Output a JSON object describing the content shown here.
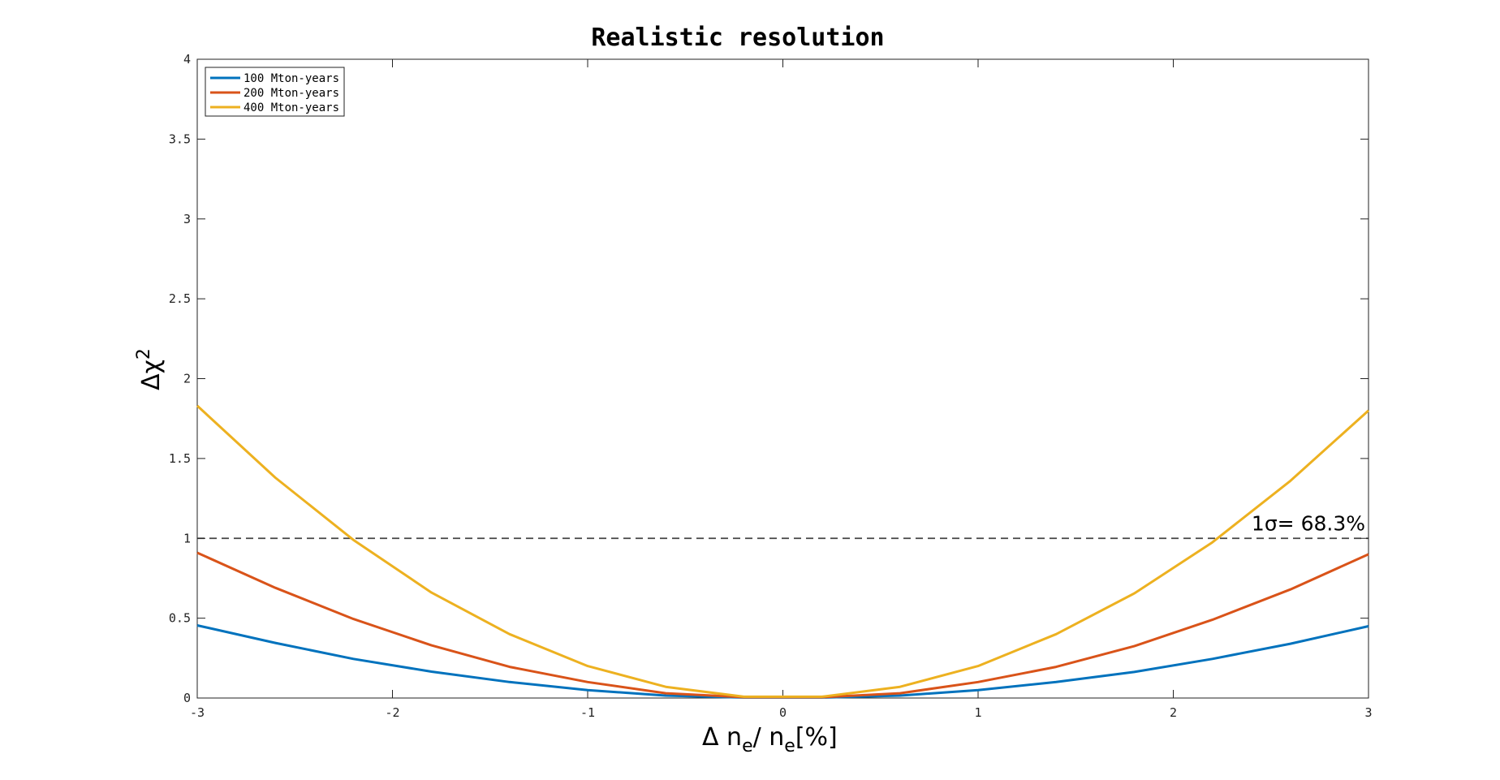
{
  "chart_data": {
    "type": "line",
    "title": "Realistic resolution",
    "xlabel_main": "Δ n",
    "xlabel_sub": "e",
    "xlabel_mid": "/ n",
    "xlabel_sub2": "e",
    "xlabel_end": "[%]",
    "ylabel_main": "Δχ",
    "ylabel_sup": "2",
    "xlim": [
      -3,
      3
    ],
    "ylim": [
      0,
      4
    ],
    "xticks": [
      "-3",
      "-2",
      "-1",
      "0",
      "1",
      "2",
      "3"
    ],
    "yticks": [
      "0",
      "0.5",
      "1",
      "1.5",
      "2",
      "2.5",
      "3",
      "3.5",
      "4"
    ],
    "grid": false,
    "legend_position": "top-left",
    "reference_line": {
      "y": 1,
      "label": "1σ= 68.3%"
    },
    "x": [
      -3,
      -2.6,
      -2.2,
      -1.8,
      -1.4,
      -1,
      -0.6,
      -0.2,
      0.2,
      0.6,
      1,
      1.4,
      1.8,
      2.2,
      2.6,
      3
    ],
    "series": [
      {
        "name": "100 Mton-years",
        "color": "#0072BD",
        "values": [
          0.455,
          0.345,
          0.245,
          0.165,
          0.1,
          0.05,
          0.015,
          0.003,
          0.003,
          0.015,
          0.05,
          0.1,
          0.163,
          0.245,
          0.34,
          0.45
        ]
      },
      {
        "name": "200 Mton-years",
        "color": "#D95319",
        "values": [
          0.91,
          0.69,
          0.495,
          0.33,
          0.195,
          0.1,
          0.03,
          0.005,
          0.005,
          0.03,
          0.1,
          0.195,
          0.325,
          0.49,
          0.68,
          0.9
        ]
      },
      {
        "name": "400 Mton-years",
        "color": "#EDB120",
        "values": [
          1.83,
          1.38,
          0.99,
          0.66,
          0.4,
          0.2,
          0.07,
          0.008,
          0.008,
          0.07,
          0.2,
          0.4,
          0.655,
          0.975,
          1.36,
          1.8
        ]
      }
    ]
  }
}
